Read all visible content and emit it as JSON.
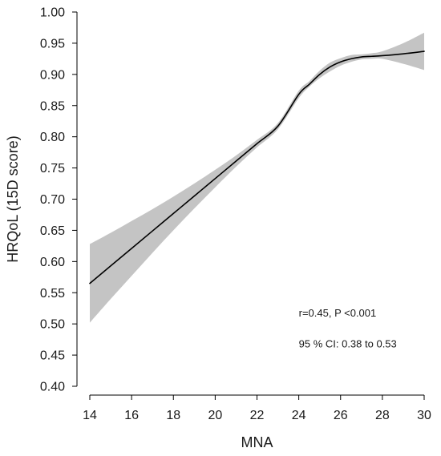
{
  "chart_data": {
    "type": "line",
    "title": "",
    "xlabel": "MNA",
    "ylabel": "HRQoL (15D score)",
    "xlim": [
      14,
      30
    ],
    "ylim": [
      0.4,
      1.0
    ],
    "xticks": [
      14,
      16,
      18,
      20,
      22,
      24,
      26,
      28,
      30
    ],
    "xtick_labels": [
      "14",
      "16",
      "18",
      "20",
      "22",
      "24",
      "26",
      "28",
      "30"
    ],
    "yticks": [
      0.4,
      0.45,
      0.5,
      0.55,
      0.6,
      0.65,
      0.7,
      0.75,
      0.8,
      0.85,
      0.9,
      0.95,
      1.0
    ],
    "ytick_labels": [
      "0.40",
      "0.45",
      "0.50",
      "0.55",
      "0.60",
      "0.65",
      "0.70",
      "0.75",
      "0.80",
      "0.85",
      "0.90",
      "0.95",
      "1.00"
    ],
    "grid": false,
    "line_color": "#000000",
    "band_color": "#c4c4c4",
    "series": [
      {
        "x": [
          14,
          15,
          16,
          17,
          18,
          19,
          20,
          21,
          22,
          23,
          24,
          24.5,
          25,
          25.5,
          26,
          26.5,
          27,
          27.5,
          28,
          29,
          30
        ],
        "y": [
          0.565,
          0.593,
          0.621,
          0.649,
          0.677,
          0.705,
          0.733,
          0.761,
          0.789,
          0.817,
          0.868,
          0.884,
          0.9,
          0.912,
          0.92,
          0.925,
          0.928,
          0.929,
          0.93,
          0.933,
          0.937
        ],
        "lower": [
          0.502,
          0.54,
          0.577,
          0.614,
          0.65,
          0.685,
          0.719,
          0.752,
          0.783,
          0.812,
          0.862,
          0.88,
          0.894,
          0.905,
          0.914,
          0.92,
          0.924,
          0.925,
          0.925,
          0.917,
          0.907
        ],
        "upper": [
          0.628,
          0.646,
          0.665,
          0.684,
          0.704,
          0.725,
          0.747,
          0.77,
          0.795,
          0.822,
          0.874,
          0.889,
          0.906,
          0.919,
          0.926,
          0.931,
          0.932,
          0.934,
          0.937,
          0.95,
          0.967
        ]
      }
    ],
    "annotations": [
      {
        "text": "r=0.45, P <0.001",
        "x": 24.0,
        "y": 0.512
      },
      {
        "text": "95 % CI: 0.38 to 0.53",
        "x": 24.0,
        "y": 0.462
      }
    ]
  }
}
